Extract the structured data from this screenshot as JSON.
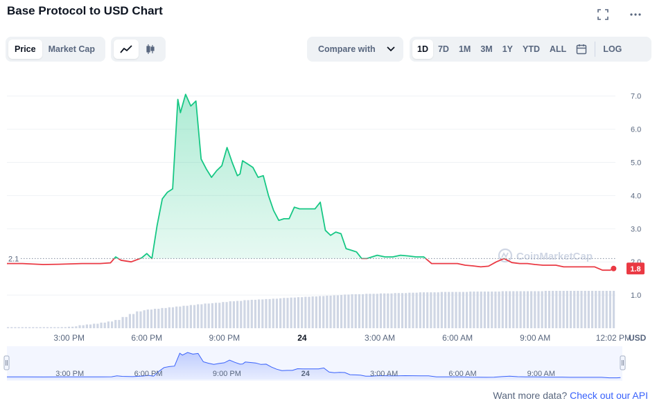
{
  "header": {
    "title": "Base Protocol to USD Chart"
  },
  "toolbar": {
    "price_label": "Price",
    "market_cap_label": "Market Cap",
    "chart_types": [
      "line-chart-icon",
      "candlestick-icon"
    ],
    "compare_label": "Compare with",
    "ranges": [
      "1D",
      "7D",
      "1M",
      "3M",
      "1Y",
      "YTD",
      "ALL"
    ],
    "active_range": "1D",
    "log_label": "LOG"
  },
  "footer": {
    "prompt": "Want more data?",
    "link": "Check out our API"
  },
  "chart_data": {
    "type": "line",
    "watermark": "CoinMarketCap",
    "currency_label": "USD",
    "y_ticks": [
      "1.0",
      "2.0",
      "3.0",
      "4.0",
      "5.0",
      "6.0",
      "7.0"
    ],
    "ylim": [
      0.0,
      7.6
    ],
    "x_ticks": [
      {
        "label": "3:00 PM",
        "h": 15
      },
      {
        "label": "6:00 PM",
        "h": 18
      },
      {
        "label": "9:00 PM",
        "h": 21
      },
      {
        "label": "24",
        "h": 24,
        "bold": true
      },
      {
        "label": "3:00 AM",
        "h": 27
      },
      {
        "label": "6:00 AM",
        "h": 30
      },
      {
        "label": "9:00 AM",
        "h": 33
      },
      {
        "label": "12:02 PM",
        "h": 36.03
      }
    ],
    "xlim": [
      12.6,
      36.1
    ],
    "open_price": 2.1,
    "open_label": "2.1",
    "current_price": 1.8,
    "current_label": "1.8",
    "colors": {
      "up": "#16c784",
      "down": "#ea3943",
      "volume": "#cfd6e4",
      "nav": "#3861fb"
    },
    "series": [
      {
        "x": [
          12.6,
          13.2,
          14.0,
          14.6,
          15.5,
          16.2,
          16.6,
          16.8,
          17.0,
          17.4,
          17.8,
          18.0,
          18.2,
          18.4,
          18.6,
          18.8,
          19.0,
          19.2,
          19.3,
          19.5,
          19.7,
          19.9,
          20.1,
          20.3,
          20.5,
          20.7,
          20.9,
          21.1,
          21.3,
          21.5,
          21.6,
          21.7,
          21.9,
          22.1,
          22.3,
          22.5,
          22.7,
          22.9,
          23.1,
          23.3,
          23.5,
          23.7,
          23.9,
          24.1,
          24.3,
          24.5,
          24.7,
          24.9,
          25.1,
          25.3,
          25.5,
          25.7,
          25.9,
          26.1,
          26.3,
          26.5,
          26.7,
          26.9,
          27.2,
          27.5,
          27.8,
          28.1,
          28.4,
          28.7,
          29.0,
          29.3,
          29.6,
          29.8,
          30.0,
          30.3,
          30.6,
          30.9,
          31.2,
          31.5,
          31.8,
          32.1,
          32.4,
          32.7,
          33.0,
          33.3,
          33.5,
          33.8,
          34.1,
          34.4,
          34.7,
          35.0,
          35.3,
          35.6,
          35.9,
          36.03
        ],
        "values": [
          1.95,
          1.95,
          1.92,
          1.93,
          1.95,
          1.95,
          1.97,
          2.15,
          2.05,
          2.0,
          2.12,
          2.25,
          2.1,
          3.1,
          3.9,
          4.1,
          4.2,
          6.9,
          6.5,
          7.05,
          6.7,
          6.85,
          5.1,
          4.8,
          4.55,
          4.75,
          4.9,
          5.45,
          5.0,
          4.6,
          4.65,
          5.05,
          4.95,
          4.85,
          4.55,
          4.6,
          4.0,
          3.55,
          3.25,
          3.3,
          3.3,
          3.65,
          3.6,
          3.6,
          3.6,
          3.6,
          3.8,
          2.95,
          2.8,
          2.9,
          2.85,
          2.4,
          2.35,
          2.3,
          2.1,
          2.1,
          2.15,
          2.2,
          2.15,
          2.15,
          2.2,
          2.18,
          2.15,
          2.15,
          1.95,
          1.95,
          1.95,
          1.95,
          1.95,
          1.9,
          1.88,
          1.85,
          1.87,
          2.0,
          2.1,
          1.98,
          1.95,
          1.95,
          1.92,
          1.9,
          1.9,
          1.9,
          1.85,
          1.85,
          1.85,
          1.85,
          1.85,
          1.75,
          1.75,
          1.8
        ]
      }
    ],
    "volume_ratio": [
      0.02,
      0.02,
      0.02,
      0.02,
      0.02,
      0.02,
      0.02,
      0.02,
      0.03,
      0.04,
      0.05,
      0.08,
      0.1,
      0.12,
      0.15,
      0.18,
      0.22,
      0.3,
      0.38,
      0.45,
      0.48,
      0.5,
      0.52,
      0.54,
      0.56,
      0.58,
      0.6,
      0.62,
      0.64,
      0.66,
      0.67,
      0.68,
      0.7,
      0.72,
      0.73,
      0.75,
      0.76,
      0.77,
      0.78,
      0.79,
      0.8,
      0.81,
      0.82,
      0.83,
      0.84,
      0.85,
      0.86,
      0.87,
      0.88,
      0.89,
      0.9,
      0.91,
      0.91,
      0.92,
      0.92,
      0.93,
      0.93,
      0.94,
      0.94,
      0.95,
      0.95,
      0.96,
      0.96,
      0.96,
      0.97,
      0.97,
      0.97,
      0.97,
      0.98,
      0.98,
      0.98,
      0.98,
      0.98,
      0.99,
      0.99,
      0.99,
      0.99,
      0.99,
      0.99,
      1.0,
      1.0,
      1.0,
      1.0,
      1.0,
      1.0,
      1.0,
      1.0,
      1.0,
      1.0,
      1.0
    ],
    "navigator_labels": [
      "3:00 PM",
      "6:00 PM",
      "9:00 PM",
      "24",
      "3:00 AM",
      "6:00 AM",
      "9:00 AM"
    ]
  }
}
